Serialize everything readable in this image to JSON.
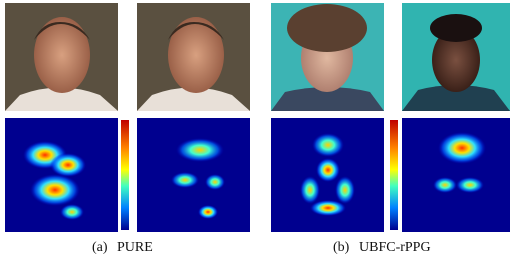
{
  "panels": [
    {
      "label": "(a)",
      "name": "PURE"
    },
    {
      "label": "(b)",
      "name": "UBFC-rPPG"
    }
  ]
}
